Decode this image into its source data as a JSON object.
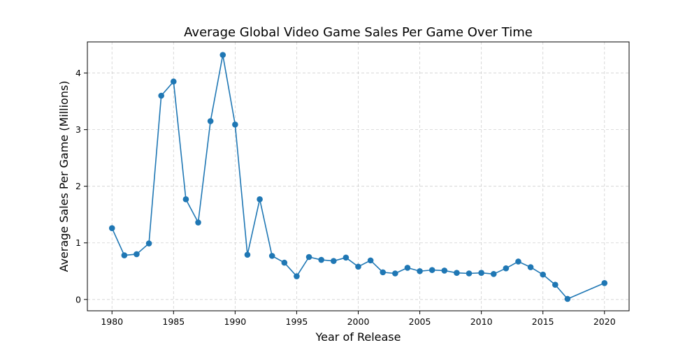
{
  "chart_data": {
    "type": "line",
    "title": "Average Global Video Game Sales Per Game Over Time",
    "xlabel": "Year of Release",
    "ylabel": "Average Sales Per Game (Millions)",
    "xlim": [
      1978,
      2022
    ],
    "ylim": [
      -0.2,
      4.55
    ],
    "grid": true,
    "grid_style": "dashed",
    "marker": "circle",
    "color": "#1f77b4",
    "x_ticks": [
      "1980",
      "1985",
      "1990",
      "1995",
      "2000",
      "2005",
      "2010",
      "2015",
      "2020"
    ],
    "y_ticks": [
      "0",
      "1",
      "2",
      "3",
      "4"
    ],
    "series": [
      {
        "x": [
          1980,
          1981,
          1982,
          1983,
          1984,
          1985,
          1986,
          1987,
          1988,
          1989,
          1990,
          1991,
          1992,
          1993,
          1994,
          1995,
          1996,
          1997,
          1998,
          1999,
          2000,
          2001,
          2002,
          2003,
          2004,
          2005,
          2006,
          2007,
          2008,
          2009,
          2010,
          2011,
          2012,
          2013,
          2014,
          2015,
          2016,
          2017,
          2020
        ],
        "values": [
          1.26,
          0.78,
          0.8,
          0.99,
          3.6,
          3.85,
          1.77,
          1.36,
          3.15,
          4.32,
          3.09,
          0.79,
          1.77,
          0.77,
          0.65,
          0.41,
          0.75,
          0.7,
          0.68,
          0.74,
          0.58,
          0.69,
          0.48,
          0.46,
          0.56,
          0.5,
          0.52,
          0.51,
          0.47,
          0.46,
          0.47,
          0.45,
          0.55,
          0.67,
          0.57,
          0.44,
          0.26,
          0.01,
          0.29
        ]
      }
    ]
  }
}
